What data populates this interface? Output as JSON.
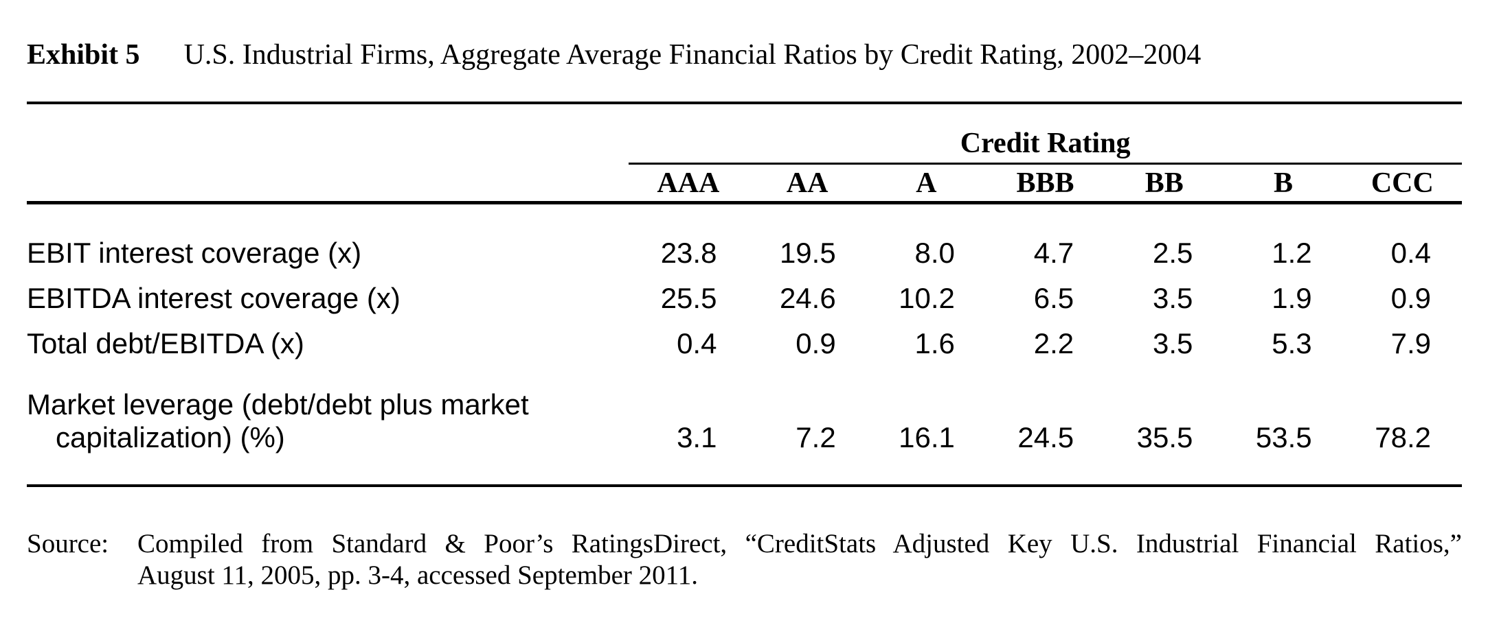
{
  "exhibit": {
    "label": "Exhibit 5",
    "title": "U.S. Industrial Firms, Aggregate Average Financial Ratios by Credit Rating, 2002–2004"
  },
  "table": {
    "group_header": "Credit Rating",
    "columns": [
      "AAA",
      "AA",
      "A",
      "BBB",
      "BB",
      "B",
      "CCC"
    ],
    "rows": [
      {
        "label": "EBIT interest coverage (x)",
        "values": [
          "23.8",
          "19.5",
          "8.0",
          "4.7",
          "2.5",
          "1.2",
          "0.4"
        ]
      },
      {
        "label": "EBITDA interest coverage (x)",
        "values": [
          "25.5",
          "24.6",
          "10.2",
          "6.5",
          "3.5",
          "1.9",
          "0.9"
        ]
      },
      {
        "label": "Total debt/EBITDA (x)",
        "values": [
          "0.4",
          "0.9",
          "1.6",
          "2.2",
          "3.5",
          "5.3",
          "7.9"
        ]
      },
      {
        "label": "Market leverage (debt/debt plus market capitalization) (%)",
        "values": [
          "3.1",
          "7.2",
          "16.1",
          "24.5",
          "35.5",
          "53.5",
          "78.2"
        ]
      }
    ]
  },
  "source": {
    "label": "Source:",
    "line1": "Compiled from Standard & Poor’s RatingsDirect, “CreditStats Adjusted Key U.S. Industrial Financial Ratios,”",
    "line2": "August 11, 2005, pp. 3-4, accessed September 2011."
  },
  "chart_data": {
    "type": "table",
    "title": "Exhibit 5 U.S. Industrial Firms, Aggregate Average Financial Ratios by Credit Rating, 2002–2004",
    "column_group": "Credit Rating",
    "columns": [
      "AAA",
      "AA",
      "A",
      "BBB",
      "BB",
      "B",
      "CCC"
    ],
    "rows": [
      {
        "metric": "EBIT interest coverage (x)",
        "values": [
          23.8,
          19.5,
          8.0,
          4.7,
          2.5,
          1.2,
          0.4
        ]
      },
      {
        "metric": "EBITDA interest coverage (x)",
        "values": [
          25.5,
          24.6,
          10.2,
          6.5,
          3.5,
          1.9,
          0.9
        ]
      },
      {
        "metric": "Total debt/EBITDA (x)",
        "values": [
          0.4,
          0.9,
          1.6,
          2.2,
          3.5,
          5.3,
          7.9
        ]
      },
      {
        "metric": "Market leverage (debt/debt plus market capitalization) (%)",
        "values": [
          3.1,
          7.2,
          16.1,
          24.5,
          35.5,
          53.5,
          78.2
        ]
      }
    ],
    "source": "Compiled from Standard & Poor’s RatingsDirect, “CreditStats Adjusted Key U.S. Industrial Financial Ratios,” August 11, 2005, pp. 3-4, accessed September 2011."
  }
}
